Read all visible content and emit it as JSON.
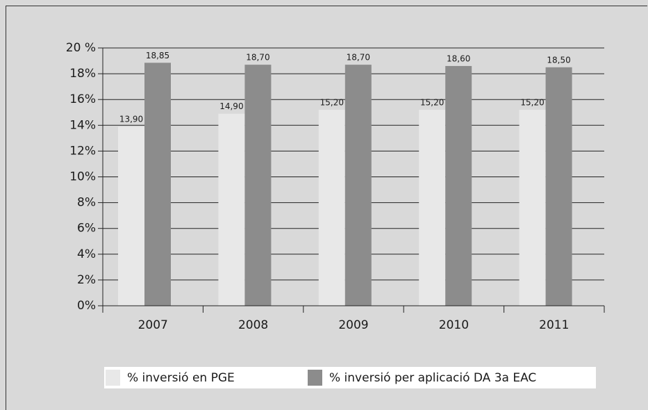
{
  "chart_data": {
    "type": "bar",
    "categories": [
      "2007",
      "2008",
      "2009",
      "2010",
      "2011"
    ],
    "series": [
      {
        "name": "% inversió en PGE",
        "color": "#e8e8e8",
        "values": [
          13.9,
          14.9,
          15.2,
          15.2,
          15.2
        ],
        "value_labels": [
          "13,90",
          "14,90",
          "15,20",
          "15,20",
          "15,20"
        ]
      },
      {
        "name": "% inversió per aplicació DA 3a EAC",
        "color": "#8c8c8c",
        "values": [
          18.85,
          18.7,
          18.7,
          18.6,
          18.5
        ],
        "value_labels": [
          "18,85",
          "18,70",
          "18,70",
          "18,60",
          "18,50"
        ]
      }
    ],
    "ylim": [
      0,
      20
    ],
    "yticks": [
      {
        "value": 0,
        "label": "0%"
      },
      {
        "value": 2,
        "label": "2%"
      },
      {
        "value": 4,
        "label": "4%"
      },
      {
        "value": 6,
        "label": "6%"
      },
      {
        "value": 8,
        "label": "8%"
      },
      {
        "value": 10,
        "label": "10%"
      },
      {
        "value": 12,
        "label": "12%"
      },
      {
        "value": 14,
        "label": "14%"
      },
      {
        "value": 16,
        "label": "16%"
      },
      {
        "value": 18,
        "label": "18%"
      },
      {
        "value": 20,
        "label": "20 %"
      }
    ],
    "grid": true
  }
}
